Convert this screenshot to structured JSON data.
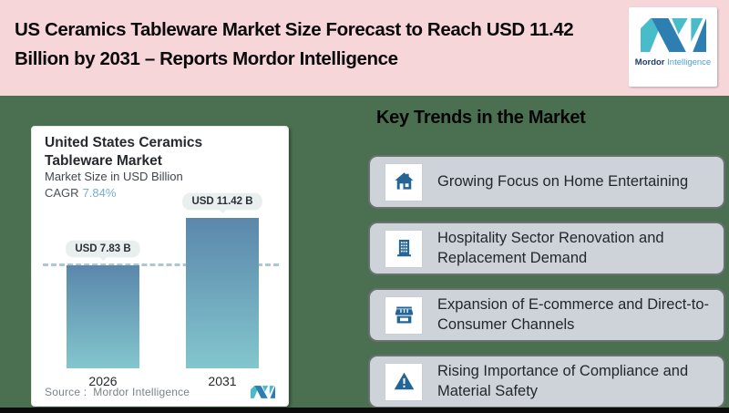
{
  "header": {
    "title": "US Ceramics Tableware Market Size Forecast to Reach USD 11.42 Billion by 2031 – Reports Mordor Intelligence",
    "logo": {
      "brand_bold": "Mordor",
      "brand_light": "Intelligence"
    }
  },
  "chart_card": {
    "title": "United States Ceramics Tableware Market",
    "subtitle": "Market Size in USD Billion",
    "cagr_label": "CAGR",
    "cagr_value": "7.84%",
    "source_label": "Source :",
    "source_value": "Mordor Intelligence"
  },
  "chart_data": {
    "type": "bar",
    "title": "United States Ceramics Tableware Market",
    "subtitle": "Market Size in USD Billion",
    "cagr": "7.84%",
    "unit": "USD Billion",
    "categories": [
      "2026",
      "2031"
    ],
    "values": [
      7.83,
      11.42
    ],
    "value_labels": [
      "USD 7.83 B",
      "USD 11.42 B"
    ],
    "reference_line": {
      "value": 7.83,
      "style": "dashed"
    },
    "legend": "none",
    "grid": "off",
    "bar_gradient": [
      "#5b87ab",
      "#83c6ce"
    ]
  },
  "trends": {
    "heading": "Key Trends in the Market",
    "items": [
      {
        "icon": "home-icon",
        "text": "Growing Focus on Home Entertaining"
      },
      {
        "icon": "building-icon",
        "text": "Hospitality Sector Renovation and Replacement Demand"
      },
      {
        "icon": "storefront-icon",
        "text": "Expansion of E-commerce and Direct-to-Consumer Channels"
      },
      {
        "icon": "warning-icon",
        "text": "Rising Importance of Compliance and Material Safety"
      }
    ]
  },
  "colors": {
    "header_bg": "#f7d6da",
    "page_bg": "#4a7051",
    "bottom_strip": "#0c0c0c",
    "chart_card_bg": "#ffffff",
    "trend_card_bg": "#ced3da",
    "icon_blue": "#236695",
    "cagr_blue": "#76add5",
    "dash_blue": "#a9c8da",
    "logo_dark_blue": "#2e7fb1",
    "logo_teal": "#49bcca"
  }
}
